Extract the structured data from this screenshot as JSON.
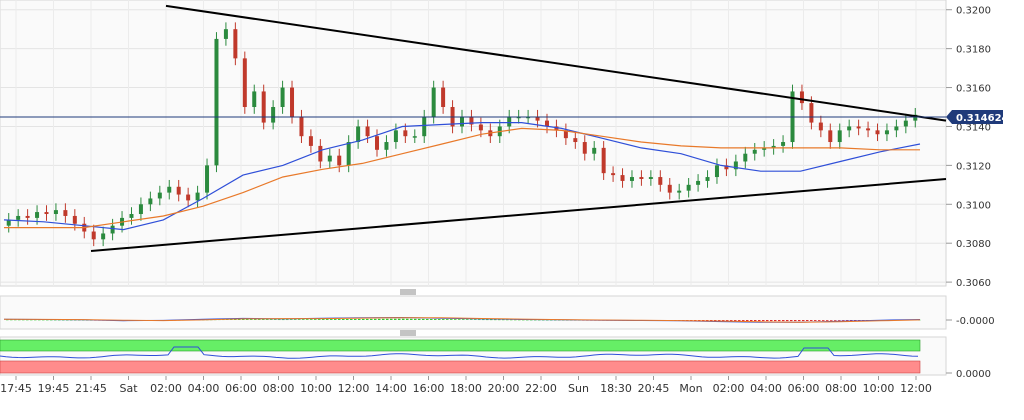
{
  "price_label": "0.314624",
  "chart_data": [
    {
      "type": "candlestick",
      "title": "",
      "xlabel": "",
      "ylabel": "",
      "ylim": [
        0.3058,
        0.3205
      ],
      "grid": true,
      "x_tick_labels": [
        "17:45",
        "19:45",
        "21:45",
        "Sat",
        "02:00",
        "04:00",
        "06:00",
        "08:00",
        "10:00",
        "12:00",
        "14:00",
        "16:00",
        "18:00",
        "20:00",
        "22:00",
        "Sun",
        "18:30",
        "20:45",
        "Mon",
        "02:00",
        "04:00",
        "06:00",
        "08:00",
        "10:00",
        "12:00"
      ],
      "y_ticks": [
        "0.3060",
        "0.3080",
        "0.3100",
        "0.3120",
        "0.3140",
        "0.3160",
        "0.3180",
        "0.3200"
      ],
      "current_price": 0.314624,
      "candles_close_approx": [
        0.3092,
        0.3094,
        0.3093,
        0.3096,
        0.3095,
        0.3097,
        0.3094,
        0.309,
        0.3086,
        0.3082,
        0.3085,
        0.3089,
        0.3093,
        0.3095,
        0.31,
        0.3103,
        0.3106,
        0.3109,
        0.3105,
        0.3102,
        0.3106,
        0.312,
        0.3185,
        0.319,
        0.3175,
        0.315,
        0.3158,
        0.3142,
        0.315,
        0.316,
        0.3145,
        0.3135,
        0.313,
        0.3122,
        0.3125,
        0.312,
        0.3132,
        0.314,
        0.3135,
        0.3128,
        0.3132,
        0.3138,
        0.3135,
        0.3135,
        0.3145,
        0.316,
        0.315,
        0.314,
        0.3145,
        0.3141,
        0.3138,
        0.3135,
        0.314,
        0.3145,
        0.3145,
        0.3145,
        0.3143,
        0.314,
        0.3138,
        0.3134,
        0.3132,
        0.3126,
        0.3129,
        0.3116,
        0.3115,
        0.3112,
        0.3114,
        0.3113,
        0.3114,
        0.311,
        0.3106,
        0.3107,
        0.311,
        0.3112,
        0.3114,
        0.312,
        0.3118,
        0.3122,
        0.3126,
        0.3128,
        0.3129,
        0.313,
        0.3132,
        0.3158,
        0.3152,
        0.3142,
        0.3138,
        0.3132,
        0.3138,
        0.314,
        0.3139,
        0.3138,
        0.3136,
        0.3138,
        0.314,
        0.3143,
        0.3146
      ],
      "series": [
        {
          "name": "",
          "color": "#2f4fd8",
          "values": [
            0.3092,
            0.3091,
            0.3089,
            0.3087,
            0.3092,
            0.3103,
            0.3115,
            0.312,
            0.3128,
            0.3133,
            0.314,
            0.3141,
            0.3142,
            0.3142,
            0.3139,
            0.3134,
            0.3129,
            0.3126,
            0.312,
            0.3117,
            0.3117,
            0.3122,
            0.3127,
            0.3131
          ]
        },
        {
          "name": "",
          "color": "#e8792a",
          "values": [
            0.3088,
            0.3088,
            0.3088,
            0.3091,
            0.3094,
            0.3099,
            0.3106,
            0.3114,
            0.3118,
            0.3121,
            0.3126,
            0.3131,
            0.3136,
            0.3139,
            0.3138,
            0.3135,
            0.3132,
            0.313,
            0.3129,
            0.3129,
            0.3129,
            0.3129,
            0.3128,
            0.3128
          ]
        }
      ],
      "trendlines": [
        {
          "from": {
            "x": "Sat 02:00",
            "y": 0.3202
          },
          "to": {
            "x": "Mon 12:00",
            "y": 0.3143
          }
        },
        {
          "from": {
            "x": "21:45",
            "y": 0.3076
          },
          "to": {
            "x": "Mon 12:00",
            "y": 0.3113
          }
        }
      ]
    },
    {
      "type": "macd",
      "ylabel": "",
      "y_ticks": [
        "-0.0000"
      ],
      "series": [
        {
          "name": "",
          "color": "#2f4fd8"
        },
        {
          "name": "",
          "color": "#e8792a"
        }
      ],
      "histogram_colors": {
        "positive": "#33cc33",
        "negative": "#e02a2a"
      }
    },
    {
      "type": "band",
      "y_ticks": [
        "0.0000"
      ],
      "colors": {
        "upper_band": "#66ee66",
        "lower_band": "#ff8c8c",
        "line": "#2f4fd8"
      }
    }
  ]
}
